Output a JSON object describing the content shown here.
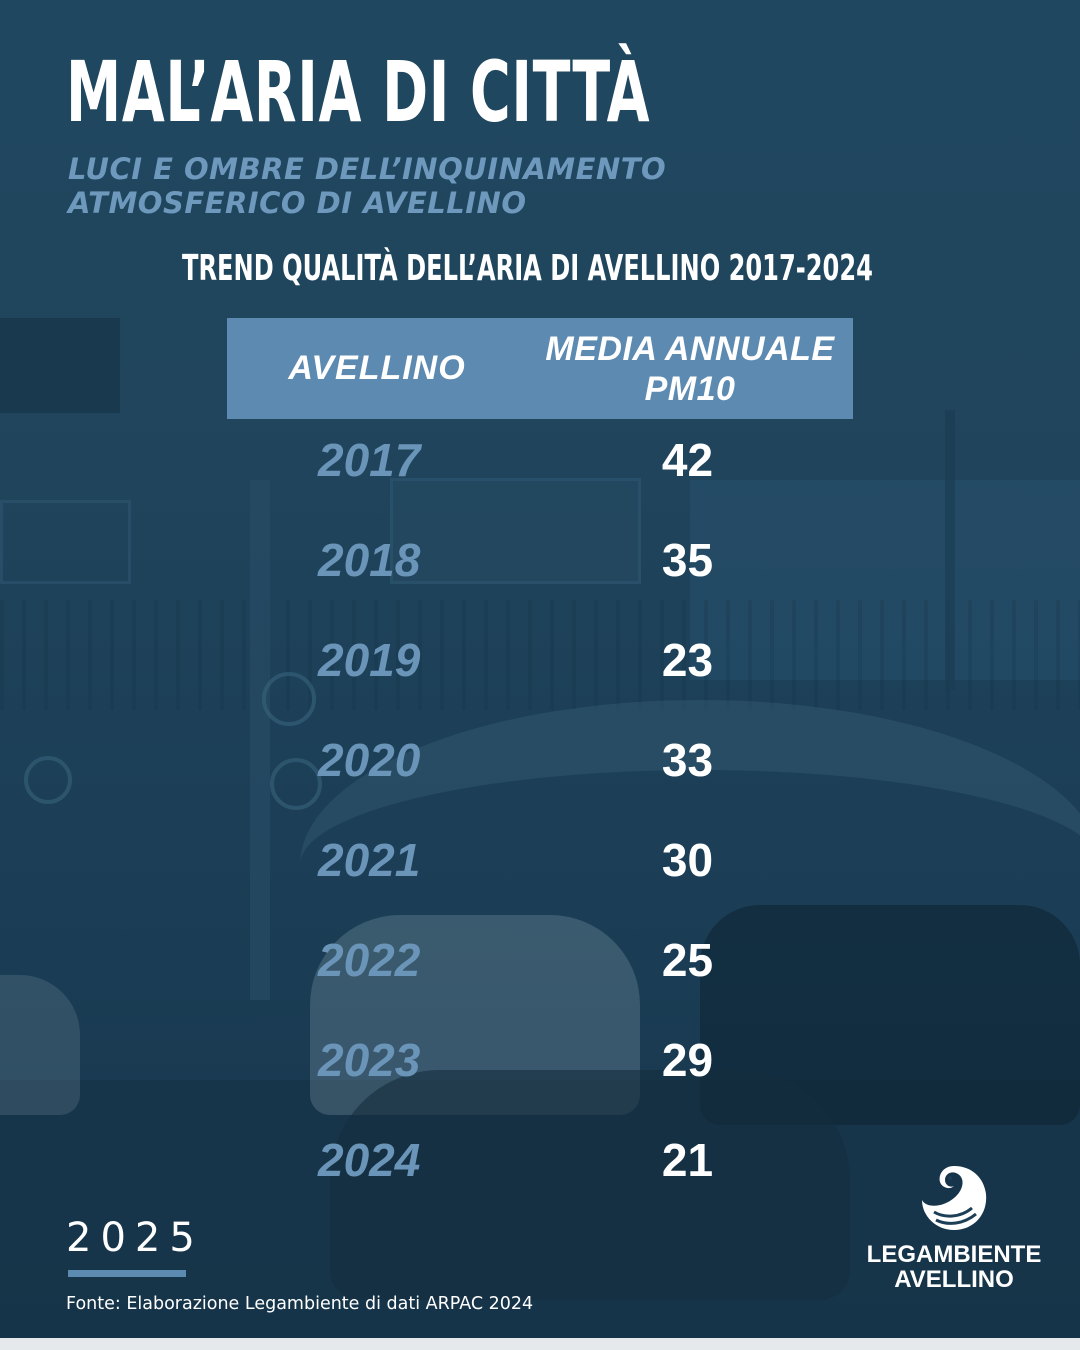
{
  "header": {
    "title": "MAL’ARIA DI CITTÀ",
    "subtitle": "LUCI E OMBRE DELL’INQUINAMENTO ATMOSFERICO DI AVELLINO",
    "table_heading": "TREND QUALITÀ DELL’ARIA DI AVELLINO 2017-2024"
  },
  "table": {
    "columns": [
      "AVELLINO",
      "MEDIA ANNUALE PM10"
    ],
    "rows": [
      {
        "year": "2017",
        "value": "42"
      },
      {
        "year": "2018",
        "value": "35"
      },
      {
        "year": "2019",
        "value": "23"
      },
      {
        "year": "2020",
        "value": "33"
      },
      {
        "year": "2021",
        "value": "30"
      },
      {
        "year": "2022",
        "value": "25"
      },
      {
        "year": "2023",
        "value": "29"
      },
      {
        "year": "2024",
        "value": "21"
      }
    ]
  },
  "footer": {
    "edition_year": "2025",
    "source": "Fonte: Elaborazione Legambiente di dati ARPAC 2024",
    "logo_text": "LEGAMBIENTE AVELLINO",
    "logo_icon": "swan-icon"
  },
  "colors": {
    "background": "#1f4860",
    "accent": "#5d8ab1",
    "year_text": "#6b95b8",
    "subtitle": "#6e99bd",
    "text": "#ffffff"
  }
}
